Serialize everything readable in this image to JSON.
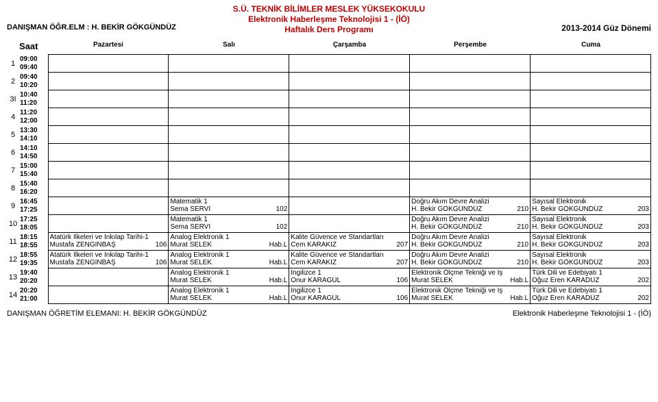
{
  "header": {
    "school": "S.Ü. TEKNİK BİLİMLER MESLEK YÜKSEKOKULU",
    "program": "Elektronik Haberleşme Teknolojisi 1 -  (İÖ)",
    "title": "Haftalık Ders Programı",
    "advisor_label": "DANIŞMAN ÖĞR.ELM : H. BEKİR GÖKGÜNDÜZ",
    "term": "2013-2014  Güz Dönemi",
    "color_accent": "#c00000"
  },
  "columns": {
    "time_label": "Saat",
    "days": [
      "Pazartesi",
      "Salı",
      "Çarşamba",
      "Perşembe",
      "Cuma"
    ]
  },
  "rows": [
    {
      "num": "1",
      "t1": "09:00",
      "t2": "09:40",
      "cells": [
        null,
        null,
        null,
        null,
        null
      ]
    },
    {
      "num": "2",
      "t1": "09:40",
      "t2": "10:20",
      "cells": [
        null,
        null,
        null,
        null,
        null
      ]
    },
    {
      "num": "3I",
      "t1": "10:40",
      "t2": "11:20",
      "cells": [
        null,
        null,
        null,
        null,
        null
      ]
    },
    {
      "num": "4",
      "t1": "11:20",
      "t2": "12:00",
      "cells": [
        null,
        null,
        null,
        null,
        null
      ]
    },
    {
      "num": "5",
      "t1": "13:30",
      "t2": "14:10",
      "cells": [
        null,
        null,
        null,
        null,
        null
      ]
    },
    {
      "num": "6",
      "t1": "14:10",
      "t2": "14:50",
      "cells": [
        null,
        null,
        null,
        null,
        null
      ]
    },
    {
      "num": "7",
      "t1": "15:00",
      "t2": "15:40",
      "cells": [
        null,
        null,
        null,
        null,
        null
      ]
    },
    {
      "num": "8",
      "t1": "15:40",
      "t2": "16:20",
      "cells": [
        null,
        null,
        null,
        null,
        null
      ]
    },
    {
      "num": "9",
      "t1": "16:45",
      "t2": "17:25",
      "cells": [
        null,
        {
          "course": "Matematik 1",
          "instr": "Sema SERVİ",
          "room": "102"
        },
        null,
        {
          "course": "Doğru Akım Devre Analizi",
          "instr": "H. Bekir GÖKGÜNDÜZ",
          "room": "210"
        },
        {
          "course": "Sayısal Elektronik",
          "instr": "H. Bekir GÖKGÜNDÜZ",
          "room": "203"
        }
      ]
    },
    {
      "num": "10",
      "t1": "17:25",
      "t2": "18:05",
      "cells": [
        null,
        {
          "course": "Matematik 1",
          "instr": "Sema SERVİ",
          "room": "102"
        },
        null,
        {
          "course": "Doğru Akım Devre Analizi",
          "instr": "H. Bekir GÖKGÜNDÜZ",
          "room": "210"
        },
        {
          "course": "Sayısal Elektronik",
          "instr": "H. Bekir GÖKGÜNDÜZ",
          "room": "203"
        }
      ]
    },
    {
      "num": "11",
      "t1": "18:15",
      "t2": "18:55",
      "cells": [
        {
          "course": "Atatürk İlkeleri ve İnkılap Tarihi-1",
          "instr": "Mustafa ZENGİNBAŞ",
          "room": "106"
        },
        {
          "course": "Analog Elektronik 1",
          "instr": "Murat SELEK",
          "room": "Hab.L"
        },
        {
          "course": "Kalite Güvence ve Standartları",
          "instr": "Cem KARAKIZ",
          "room": "207"
        },
        {
          "course": "Doğru Akım Devre Analizi",
          "instr": "H. Bekir GÖKGÜNDÜZ",
          "room": "210"
        },
        {
          "course": "Sayısal Elektronik",
          "instr": "H. Bekir GÖKGÜNDÜZ",
          "room": "203"
        }
      ]
    },
    {
      "num": "12",
      "t1": "18:55",
      "t2": "19:35",
      "cells": [
        {
          "course": "Atatürk İlkeleri ve İnkılap Tarihi-1",
          "instr": "Mustafa ZENGİNBAŞ",
          "room": "106"
        },
        {
          "course": "Analog Elektronik 1",
          "instr": "Murat SELEK",
          "room": "Hab.L"
        },
        {
          "course": "Kalite Güvence ve Standartları",
          "instr": "Cem KARAKIZ",
          "room": "207"
        },
        {
          "course": "Doğru Akım Devre Analizi",
          "instr": "H. Bekir GÖKGÜNDÜZ",
          "room": "210"
        },
        {
          "course": "Sayısal Elektronik",
          "instr": "H. Bekir GÖKGÜNDÜZ",
          "room": "203"
        }
      ]
    },
    {
      "num": "13",
      "t1": "19:40",
      "t2": "20:20",
      "cells": [
        null,
        {
          "course": "Analog Elektronik 1",
          "instr": "Murat SELEK",
          "room": "Hab.L"
        },
        {
          "course": "İngilizce 1",
          "instr": "Onur KARAGÜL",
          "room": "106"
        },
        {
          "course": "Elektronik Ölçme Tekniği ve İş",
          "instr": "Murat SELEK",
          "room": "Hab.L"
        },
        {
          "course": "Türk Dili ve Edebiyatı 1",
          "instr": "Oğuz Eren KARADÜZ",
          "room": "202"
        }
      ]
    },
    {
      "num": "14",
      "t1": "20:20",
      "t2": "21:00",
      "cells": [
        null,
        {
          "course": "Analog Elektronik 1",
          "instr": "Murat SELEK",
          "room": "Hab.L"
        },
        {
          "course": "İngilizce 1",
          "instr": "Onur KARAGÜL",
          "room": "106"
        },
        {
          "course": "Elektronik Ölçme Tekniği ve İş",
          "instr": "Murat SELEK",
          "room": "Hab.L"
        },
        {
          "course": "Türk Dili ve Edebiyatı 1",
          "instr": "Oğuz Eren KARADÜZ",
          "room": "202"
        }
      ]
    }
  ],
  "footer": {
    "left": "DANIŞMAN ÖĞRETİM ELEMANI: H. BEKİR GÖKGÜNDÜZ",
    "right": "Elektronik Haberleşme Teknolojisi 1 -  (İÖ)"
  }
}
